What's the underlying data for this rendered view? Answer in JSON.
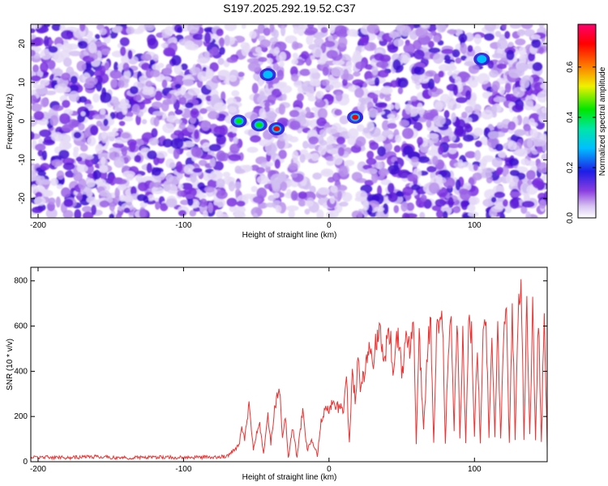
{
  "title": "S197.2025.292.19.52.C37",
  "chart_data": [
    {
      "type": "heatmap",
      "xlabel": "Height of straight line (km)",
      "ylabel": "Frequency (Hz)",
      "xlim": [
        -205,
        150
      ],
      "ylim": [
        -25,
        25
      ],
      "x_ticks": [
        -200,
        -100,
        0,
        100
      ],
      "y_ticks": [
        -20,
        -10,
        0,
        10,
        20
      ],
      "colorbar": {
        "label": "Normalized spectral amplitude",
        "range": [
          0.0,
          0.77
        ],
        "ticks": [
          0.0,
          0.2,
          0.4,
          0.6
        ],
        "colormap": "rainbow (white-purple-blue-cyan-green-yellow-red-magenta)"
      },
      "gaps_x_ranges": [
        [
          -72,
          -68
        ],
        [
          -60,
          -52
        ],
        [
          -30,
          -25
        ],
        [
          13,
          18
        ],
        [
          103,
          108
        ]
      ],
      "peaks": [
        {
          "x": -62,
          "y": 0,
          "value": 0.45
        },
        {
          "x": -48,
          "y": -1,
          "value": 0.5
        },
        {
          "x": -36,
          "y": -2,
          "value": 0.7
        },
        {
          "x": -42,
          "y": 12,
          "value": 0.3
        },
        {
          "x": 18,
          "y": 1,
          "value": 0.75
        },
        {
          "x": 105,
          "y": 16,
          "value": 0.3
        }
      ]
    },
    {
      "type": "line",
      "xlabel": "Height of straight line (km)",
      "ylabel": "SNR (10 * v/v)",
      "xlim": [
        -205,
        150
      ],
      "ylim": [
        0,
        860
      ],
      "x_ticks": [
        -200,
        -100,
        0,
        100
      ],
      "y_ticks": [
        0,
        200,
        400,
        600,
        800
      ],
      "color": "#ee3333",
      "series": [
        {
          "values": [
            [
              -205,
              20
            ],
            [
              -180,
              18
            ],
            [
              -160,
              22
            ],
            [
              -140,
              17
            ],
            [
              -120,
              20
            ],
            [
              -100,
              18
            ],
            [
              -80,
              20
            ],
            [
              -70,
              25
            ],
            [
              -62,
              70
            ],
            [
              -60,
              150
            ],
            [
              -58,
              100
            ],
            [
              -55,
              250
            ],
            [
              -52,
              60
            ],
            [
              -48,
              180
            ],
            [
              -45,
              30
            ],
            [
              -42,
              200
            ],
            [
              -40,
              80
            ],
            [
              -37,
              250
            ],
            [
              -34,
              320
            ],
            [
              -32,
              100
            ],
            [
              -30,
              210
            ],
            [
              -28,
              20
            ],
            [
              -25,
              150
            ],
            [
              -22,
              20
            ],
            [
              -18,
              230
            ],
            [
              -15,
              50
            ],
            [
              -12,
              100
            ],
            [
              -8,
              30
            ],
            [
              -5,
              200
            ],
            [
              0,
              240
            ],
            [
              5,
              250
            ],
            [
              10,
              230
            ],
            [
              12,
              360
            ],
            [
              14,
              90
            ],
            [
              16,
              380
            ],
            [
              18,
              280
            ],
            [
              20,
              440
            ],
            [
              22,
              310
            ],
            [
              25,
              420
            ],
            [
              28,
              500
            ],
            [
              30,
              430
            ],
            [
              32,
              540
            ],
            [
              35,
              600
            ],
            [
              38,
              450
            ],
            [
              40,
              540
            ],
            [
              42,
              580
            ],
            [
              44,
              380
            ],
            [
              46,
              520
            ],
            [
              48,
              540
            ],
            [
              50,
              400
            ],
            [
              52,
              480
            ],
            [
              54,
              560
            ],
            [
              56,
              480
            ],
            [
              58,
              620
            ],
            [
              60,
              80
            ],
            [
              62,
              560
            ],
            [
              65,
              140
            ],
            [
              68,
              520
            ],
            [
              70,
              610
            ],
            [
              72,
              90
            ],
            [
              74,
              600
            ],
            [
              76,
              560
            ],
            [
              78,
              650
            ],
            [
              80,
              80
            ],
            [
              82,
              520
            ],
            [
              84,
              590
            ],
            [
              86,
              140
            ],
            [
              88,
              650
            ],
            [
              90,
              110
            ],
            [
              92,
              560
            ],
            [
              94,
              90
            ],
            [
              96,
              580
            ],
            [
              98,
              600
            ],
            [
              100,
              110
            ],
            [
              102,
              520
            ],
            [
              104,
              90
            ],
            [
              106,
              580
            ],
            [
              108,
              620
            ],
            [
              110,
              100
            ],
            [
              112,
              540
            ],
            [
              114,
              120
            ],
            [
              116,
              560
            ],
            [
              118,
              100
            ],
            [
              120,
              580
            ],
            [
              122,
              640
            ],
            [
              124,
              80
            ],
            [
              126,
              690
            ],
            [
              128,
              100
            ],
            [
              130,
              620
            ],
            [
              132,
              850
            ],
            [
              134,
              90
            ],
            [
              136,
              720
            ],
            [
              138,
              110
            ],
            [
              140,
              680
            ],
            [
              142,
              100
            ],
            [
              144,
              660
            ],
            [
              146,
              80
            ],
            [
              148,
              700
            ],
            [
              150,
              60
            ]
          ]
        }
      ]
    }
  ]
}
